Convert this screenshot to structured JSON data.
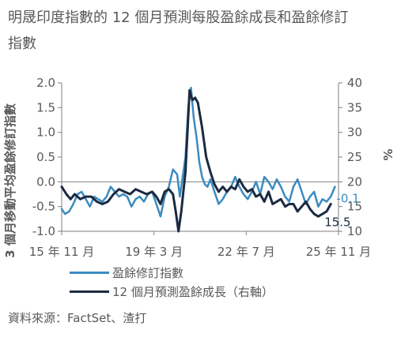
{
  "title_line1": "明晟印度指數的 12 個月預測每股盈餘成長和盈餘修訂",
  "title_line2": "指數",
  "source": "資料來源：FactSet、渣打",
  "chart_data": {
    "type": "line",
    "y_left_label": "3 個月移動平均盈餘修訂指數",
    "y_right_label": "%",
    "x_ticks": [
      "15 年 11 月",
      "19 年 3 月",
      "22 年 7 月",
      "25 年 11 月"
    ],
    "y_left_ticks": [
      "2.0",
      "1.5",
      "1.0",
      "0.5",
      "0.0",
      "-0.5",
      "-1.0"
    ],
    "y_right_ticks": [
      "40",
      "35",
      "30",
      "25",
      "20",
      "15",
      "10"
    ],
    "y_left_range": [
      -1.0,
      2.0
    ],
    "y_right_range": [
      10,
      40
    ],
    "x_range": [
      2015.83,
      2025.83
    ],
    "colors": {
      "revision": "#3b8bbf",
      "growth": "#1b2a41",
      "axis": "#7f7f7f"
    },
    "series": [
      {
        "name": "盈餘修訂指數",
        "axis": "left",
        "x": [
          2015.83,
          2015.95,
          2016.1,
          2016.25,
          2016.4,
          2016.55,
          2016.7,
          2016.85,
          2017.0,
          2017.15,
          2017.3,
          2017.45,
          2017.6,
          2017.75,
          2017.9,
          2018.05,
          2018.2,
          2018.35,
          2018.5,
          2018.65,
          2018.8,
          2018.95,
          2019.1,
          2019.25,
          2019.4,
          2019.55,
          2019.7,
          2019.85,
          2020.0,
          2020.1,
          2020.2,
          2020.3,
          2020.4,
          2020.5,
          2020.6,
          2020.7,
          2020.8,
          2020.9,
          2021.0,
          2021.1,
          2021.2,
          2021.35,
          2021.5,
          2021.65,
          2021.8,
          2021.95,
          2022.1,
          2022.25,
          2022.4,
          2022.55,
          2022.7,
          2022.85,
          2023.0,
          2023.15,
          2023.3,
          2023.45,
          2023.6,
          2023.75,
          2023.9,
          2024.05,
          2024.2,
          2024.35,
          2024.5,
          2024.65,
          2024.8,
          2024.95,
          2025.1,
          2025.25,
          2025.4,
          2025.55,
          2025.7
        ],
        "y": [
          -0.55,
          -0.65,
          -0.6,
          -0.45,
          -0.25,
          -0.2,
          -0.35,
          -0.5,
          -0.3,
          -0.35,
          -0.4,
          -0.3,
          -0.1,
          -0.2,
          -0.3,
          -0.25,
          -0.3,
          -0.5,
          -0.35,
          -0.3,
          -0.4,
          -0.25,
          -0.2,
          -0.45,
          -0.7,
          -0.3,
          -0.1,
          0.25,
          0.15,
          -0.3,
          0.1,
          0.5,
          1.5,
          1.9,
          1.3,
          0.9,
          0.4,
          0.1,
          -0.05,
          -0.1,
          0.05,
          -0.2,
          -0.45,
          -0.35,
          -0.2,
          -0.1,
          0.1,
          -0.1,
          -0.25,
          -0.35,
          -0.2,
          0.0,
          -0.25,
          0.1,
          0.0,
          -0.15,
          0.05,
          -0.1,
          -0.3,
          -0.4,
          -0.1,
          0.05,
          -0.2,
          -0.45,
          -0.3,
          -0.2,
          -0.5,
          -0.35,
          -0.4,
          -0.3,
          -0.1
        ]
      },
      {
        "name": "12 個月預測盈餘成長（右軸）",
        "axis": "right",
        "x": [
          2015.83,
          2016.0,
          2016.15,
          2016.3,
          2016.5,
          2016.7,
          2016.9,
          2017.1,
          2017.3,
          2017.5,
          2017.7,
          2017.9,
          2018.1,
          2018.3,
          2018.5,
          2018.7,
          2018.9,
          2019.1,
          2019.25,
          2019.4,
          2019.55,
          2019.7,
          2019.85,
          2019.95,
          2020.05,
          2020.15,
          2020.3,
          2020.45,
          2020.55,
          2020.65,
          2020.75,
          2020.9,
          2021.05,
          2021.2,
          2021.35,
          2021.5,
          2021.65,
          2021.8,
          2021.95,
          2022.1,
          2022.25,
          2022.4,
          2022.55,
          2022.7,
          2022.85,
          2023.0,
          2023.15,
          2023.3,
          2023.45,
          2023.6,
          2023.75,
          2023.9,
          2024.05,
          2024.2,
          2024.35,
          2024.5,
          2024.65,
          2024.8,
          2024.95,
          2025.1,
          2025.25,
          2025.4,
          2025.55
        ],
        "y": [
          19,
          17.5,
          16.5,
          17.5,
          16.5,
          17,
          17,
          16,
          15.5,
          16,
          17.5,
          18.5,
          18,
          17.5,
          18.5,
          18,
          17.5,
          18,
          17,
          15.5,
          18,
          18.5,
          17.5,
          14,
          10,
          14,
          22,
          38.5,
          36.5,
          37,
          36,
          31,
          25,
          22,
          19.5,
          18,
          19,
          18,
          19,
          18.5,
          20.5,
          19,
          18,
          18.5,
          17,
          17.5,
          16,
          18,
          15.5,
          16,
          16.5,
          15,
          15.5,
          15.5,
          14,
          15,
          16,
          14.5,
          13.5,
          13,
          13.5,
          14,
          15.5
        ]
      }
    ],
    "last_labels": {
      "revision": "-0.1",
      "growth": "15.5"
    }
  }
}
